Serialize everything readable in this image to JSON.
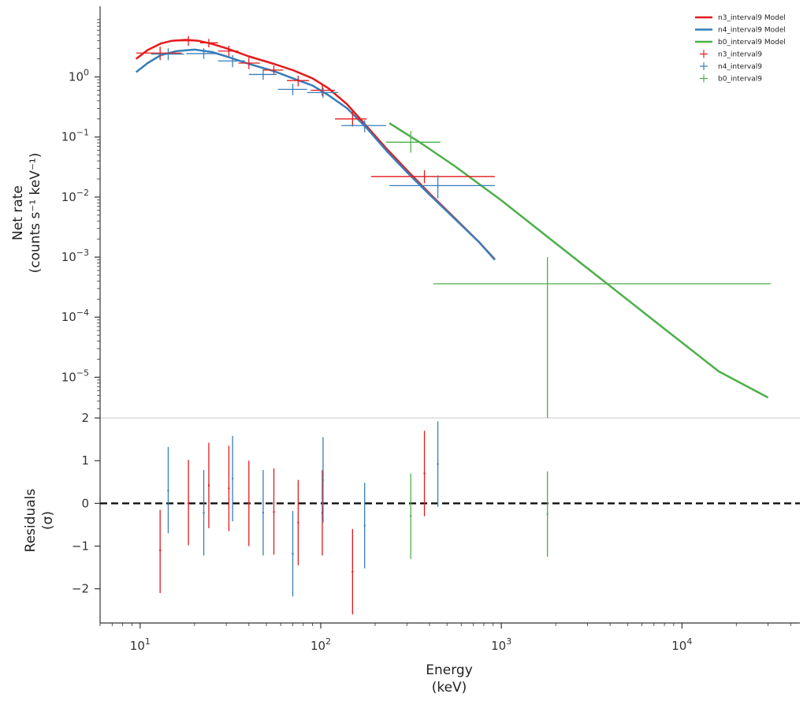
{
  "chart_data": [
    {
      "panel": "count-spectrum",
      "type": "line",
      "x_scale": "log",
      "y_scale": "log",
      "xlim": [
        6,
        45000
      ],
      "ylim": [
        2.1e-06,
        15
      ],
      "ylabel": [
        "Net rate",
        "(counts s⁻¹ keV⁻¹)"
      ],
      "y_ticks": [
        {
          "value": 1,
          "base": "10",
          "exp": "0"
        },
        {
          "value": 0.1,
          "base": "10",
          "exp": "−1"
        },
        {
          "value": 0.01,
          "base": "10",
          "exp": "−2"
        },
        {
          "value": 0.001,
          "base": "10",
          "exp": "−3"
        },
        {
          "value": 0.0001,
          "base": "10",
          "exp": "−4"
        },
        {
          "value": 1e-05,
          "base": "10",
          "exp": "−5"
        }
      ],
      "legend_position": "top-right",
      "series": [
        {
          "name": "n3_interval9 Model",
          "kind": "model",
          "color": "#e41a1c",
          "points": [
            [
              9.5,
              2.0
            ],
            [
              11,
              2.8
            ],
            [
              13,
              3.6
            ],
            [
              15,
              4.0
            ],
            [
              18,
              4.15
            ],
            [
              21,
              4.0
            ],
            [
              25,
              3.55
            ],
            [
              30,
              3.0
            ],
            [
              40,
              2.2
            ],
            [
              55,
              1.65
            ],
            [
              70,
              1.3
            ],
            [
              90,
              0.95
            ],
            [
              110,
              0.65
            ],
            [
              140,
              0.35
            ],
            [
              180,
              0.15
            ],
            [
              230,
              0.065
            ],
            [
              300,
              0.028
            ],
            [
              400,
              0.0115
            ],
            [
              550,
              0.0045
            ],
            [
              750,
              0.0018
            ],
            [
              920,
              0.00092
            ]
          ]
        },
        {
          "name": "n4_interval9 Model",
          "kind": "model",
          "color": "#377eb8",
          "points": [
            [
              9.5,
              1.2
            ],
            [
              11,
              1.7
            ],
            [
              13,
              2.3
            ],
            [
              16,
              2.7
            ],
            [
              20,
              2.85
            ],
            [
              25,
              2.6
            ],
            [
              30,
              2.2
            ],
            [
              40,
              1.65
            ],
            [
              55,
              1.25
            ],
            [
              70,
              0.95
            ],
            [
              90,
              0.72
            ],
            [
              110,
              0.5
            ],
            [
              140,
              0.3
            ],
            [
              180,
              0.14
            ],
            [
              230,
              0.06
            ],
            [
              300,
              0.026
            ],
            [
              400,
              0.011
            ],
            [
              550,
              0.0044
            ],
            [
              750,
              0.0018
            ],
            [
              920,
              0.0009
            ]
          ]
        },
        {
          "name": "b0_interval9 Model",
          "kind": "model",
          "color": "#4daf4a",
          "points": [
            [
              240,
              0.17
            ],
            [
              350,
              0.083
            ],
            [
              550,
              0.033
            ],
            [
              1000,
              0.0088
            ],
            [
              2000,
              0.0017
            ],
            [
              4000,
              0.00033
            ],
            [
              8000,
              6.4e-05
            ],
            [
              16000,
              1.25e-05
            ],
            [
              30000,
              4.6e-06
            ]
          ]
        },
        {
          "name": "n3_interval9",
          "kind": "data",
          "color": "#e41a1c",
          "points": [
            {
              "x": 12.9,
              "xlo": 9.5,
              "xhi": 17,
              "y": 2.5,
              "ylo": 1.9,
              "yhi": 3.2
            },
            {
              "x": 18.5,
              "xlo": 15.5,
              "xhi": 21.5,
              "y": 4.0,
              "ylo": 3.3,
              "yhi": 4.8
            },
            {
              "x": 24,
              "xlo": 21.5,
              "xhi": 27,
              "y": 3.7,
              "ylo": 3.1,
              "yhi": 4.3
            },
            {
              "x": 31,
              "xlo": 27,
              "xhi": 35,
              "y": 2.7,
              "ylo": 2.2,
              "yhi": 3.3
            },
            {
              "x": 40,
              "xlo": 35,
              "xhi": 46,
              "y": 1.7,
              "ylo": 1.35,
              "yhi": 2.1
            },
            {
              "x": 55,
              "xlo": 48,
              "xhi": 62,
              "y": 1.3,
              "ylo": 1.08,
              "yhi": 1.55
            },
            {
              "x": 75,
              "xlo": 65,
              "xhi": 86,
              "y": 0.87,
              "ylo": 0.7,
              "yhi": 1.05
            },
            {
              "x": 102,
              "xlo": 88,
              "xhi": 120,
              "y": 0.6,
              "ylo": 0.48,
              "yhi": 0.74
            },
            {
              "x": 150,
              "xlo": 120,
              "xhi": 180,
              "y": 0.2,
              "ylo": 0.15,
              "yhi": 0.27
            },
            {
              "x": 375,
              "xlo": 190,
              "xhi": 920,
              "y": 0.022,
              "ylo": 0.017,
              "yhi": 0.028
            }
          ]
        },
        {
          "name": "n4_interval9",
          "kind": "data",
          "color": "#377eb8",
          "points": [
            {
              "x": 14.3,
              "xlo": 11.5,
              "xhi": 17.5,
              "y": 2.4,
              "ylo": 1.9,
              "yhi": 3.0
            },
            {
              "x": 22.5,
              "xlo": 18,
              "xhi": 27,
              "y": 2.45,
              "ylo": 2.0,
              "yhi": 3.0
            },
            {
              "x": 32.5,
              "xlo": 27,
              "xhi": 38,
              "y": 1.85,
              "ylo": 1.45,
              "yhi": 2.3
            },
            {
              "x": 48,
              "xlo": 40,
              "xhi": 57,
              "y": 1.1,
              "ylo": 0.9,
              "yhi": 1.35
            },
            {
              "x": 70,
              "xlo": 58,
              "xhi": 84,
              "y": 0.62,
              "ylo": 0.5,
              "yhi": 0.77
            },
            {
              "x": 103,
              "xlo": 84,
              "xhi": 125,
              "y": 0.55,
              "ylo": 0.45,
              "yhi": 0.67
            },
            {
              "x": 175,
              "xlo": 130,
              "xhi": 230,
              "y": 0.155,
              "ylo": 0.12,
              "yhi": 0.19
            },
            {
              "x": 445,
              "xlo": 240,
              "xhi": 920,
              "y": 0.0155,
              "ylo": 0.0095,
              "yhi": 0.023
            }
          ]
        },
        {
          "name": "b0_interval9",
          "kind": "data",
          "color": "#4daf4a",
          "points": [
            {
              "x": 315,
              "xlo": 230,
              "xhi": 460,
              "y": 0.082,
              "ylo": 0.055,
              "yhi": 0.125
            },
            {
              "x": 1800,
              "xlo": 420,
              "xhi": 31000,
              "y": 0.00036,
              "ylo": 2.1e-06,
              "yhi": 0.001
            }
          ]
        }
      ]
    },
    {
      "panel": "residuals",
      "type": "scatter",
      "x_scale": "log",
      "xlim": [
        6,
        45000
      ],
      "ylim": [
        -2.8,
        2.0
      ],
      "xlabel": [
        "Energy",
        "(keV)"
      ],
      "ylabel": [
        "Residuals",
        "(σ)"
      ],
      "reference_line": 0,
      "y_ticks": [
        {
          "value": 2,
          "label": "2"
        },
        {
          "value": 1,
          "label": "1"
        },
        {
          "value": 0,
          "label": "0"
        },
        {
          "value": -1,
          "label": "−1"
        },
        {
          "value": -2,
          "label": "−2"
        }
      ],
      "x_ticks": [
        {
          "value": 10,
          "base": "10",
          "exp": "1"
        },
        {
          "value": 100,
          "base": "10",
          "exp": "2"
        },
        {
          "value": 1000,
          "base": "10",
          "exp": "3"
        },
        {
          "value": 10000,
          "base": "10",
          "exp": "4"
        }
      ],
      "series": [
        {
          "name": "n3_interval9",
          "color": "#e41a1c",
          "points": [
            {
              "x": 12.9,
              "y": -1.1,
              "lo": -2.1,
              "hi": -0.15
            },
            {
              "x": 18.5,
              "y": 0.0,
              "lo": -0.98,
              "hi": 1.02
            },
            {
              "x": 24,
              "y": 0.42,
              "lo": -0.58,
              "hi": 1.42
            },
            {
              "x": 31,
              "y": 0.35,
              "lo": -0.65,
              "hi": 1.35
            },
            {
              "x": 40,
              "y": 0.0,
              "lo": -1.0,
              "hi": 1.0
            },
            {
              "x": 55,
              "y": -0.2,
              "lo": -1.2,
              "hi": 0.82
            },
            {
              "x": 75,
              "y": -0.45,
              "lo": -1.45,
              "hi": 0.55
            },
            {
              "x": 102,
              "y": -0.22,
              "lo": -1.22,
              "hi": 0.78
            },
            {
              "x": 150,
              "y": -1.6,
              "lo": -2.6,
              "hi": -0.6
            },
            {
              "x": 375,
              "y": 0.7,
              "lo": -0.3,
              "hi": 1.7
            }
          ]
        },
        {
          "name": "n4_interval9",
          "color": "#377eb8",
          "points": [
            {
              "x": 14.3,
              "y": 0.3,
              "lo": -0.7,
              "hi": 1.32
            },
            {
              "x": 22.5,
              "y": -0.22,
              "lo": -1.22,
              "hi": 0.78
            },
            {
              "x": 32.5,
              "y": 0.58,
              "lo": -0.42,
              "hi": 1.58
            },
            {
              "x": 48,
              "y": -0.22,
              "lo": -1.22,
              "hi": 0.78
            },
            {
              "x": 70,
              "y": -1.18,
              "lo": -2.18,
              "hi": -0.18
            },
            {
              "x": 103,
              "y": 0.55,
              "lo": -0.45,
              "hi": 1.55
            },
            {
              "x": 175,
              "y": -0.52,
              "lo": -1.52,
              "hi": 0.48
            },
            {
              "x": 445,
              "y": 0.92,
              "lo": -0.08,
              "hi": 1.92
            }
          ]
        },
        {
          "name": "b0_interval9",
          "color": "#4daf4a",
          "points": [
            {
              "x": 315,
              "y": -0.3,
              "lo": -1.3,
              "hi": 0.7
            },
            {
              "x": 1800,
              "y": -0.25,
              "lo": -1.25,
              "hi": 0.75
            }
          ]
        }
      ]
    }
  ]
}
